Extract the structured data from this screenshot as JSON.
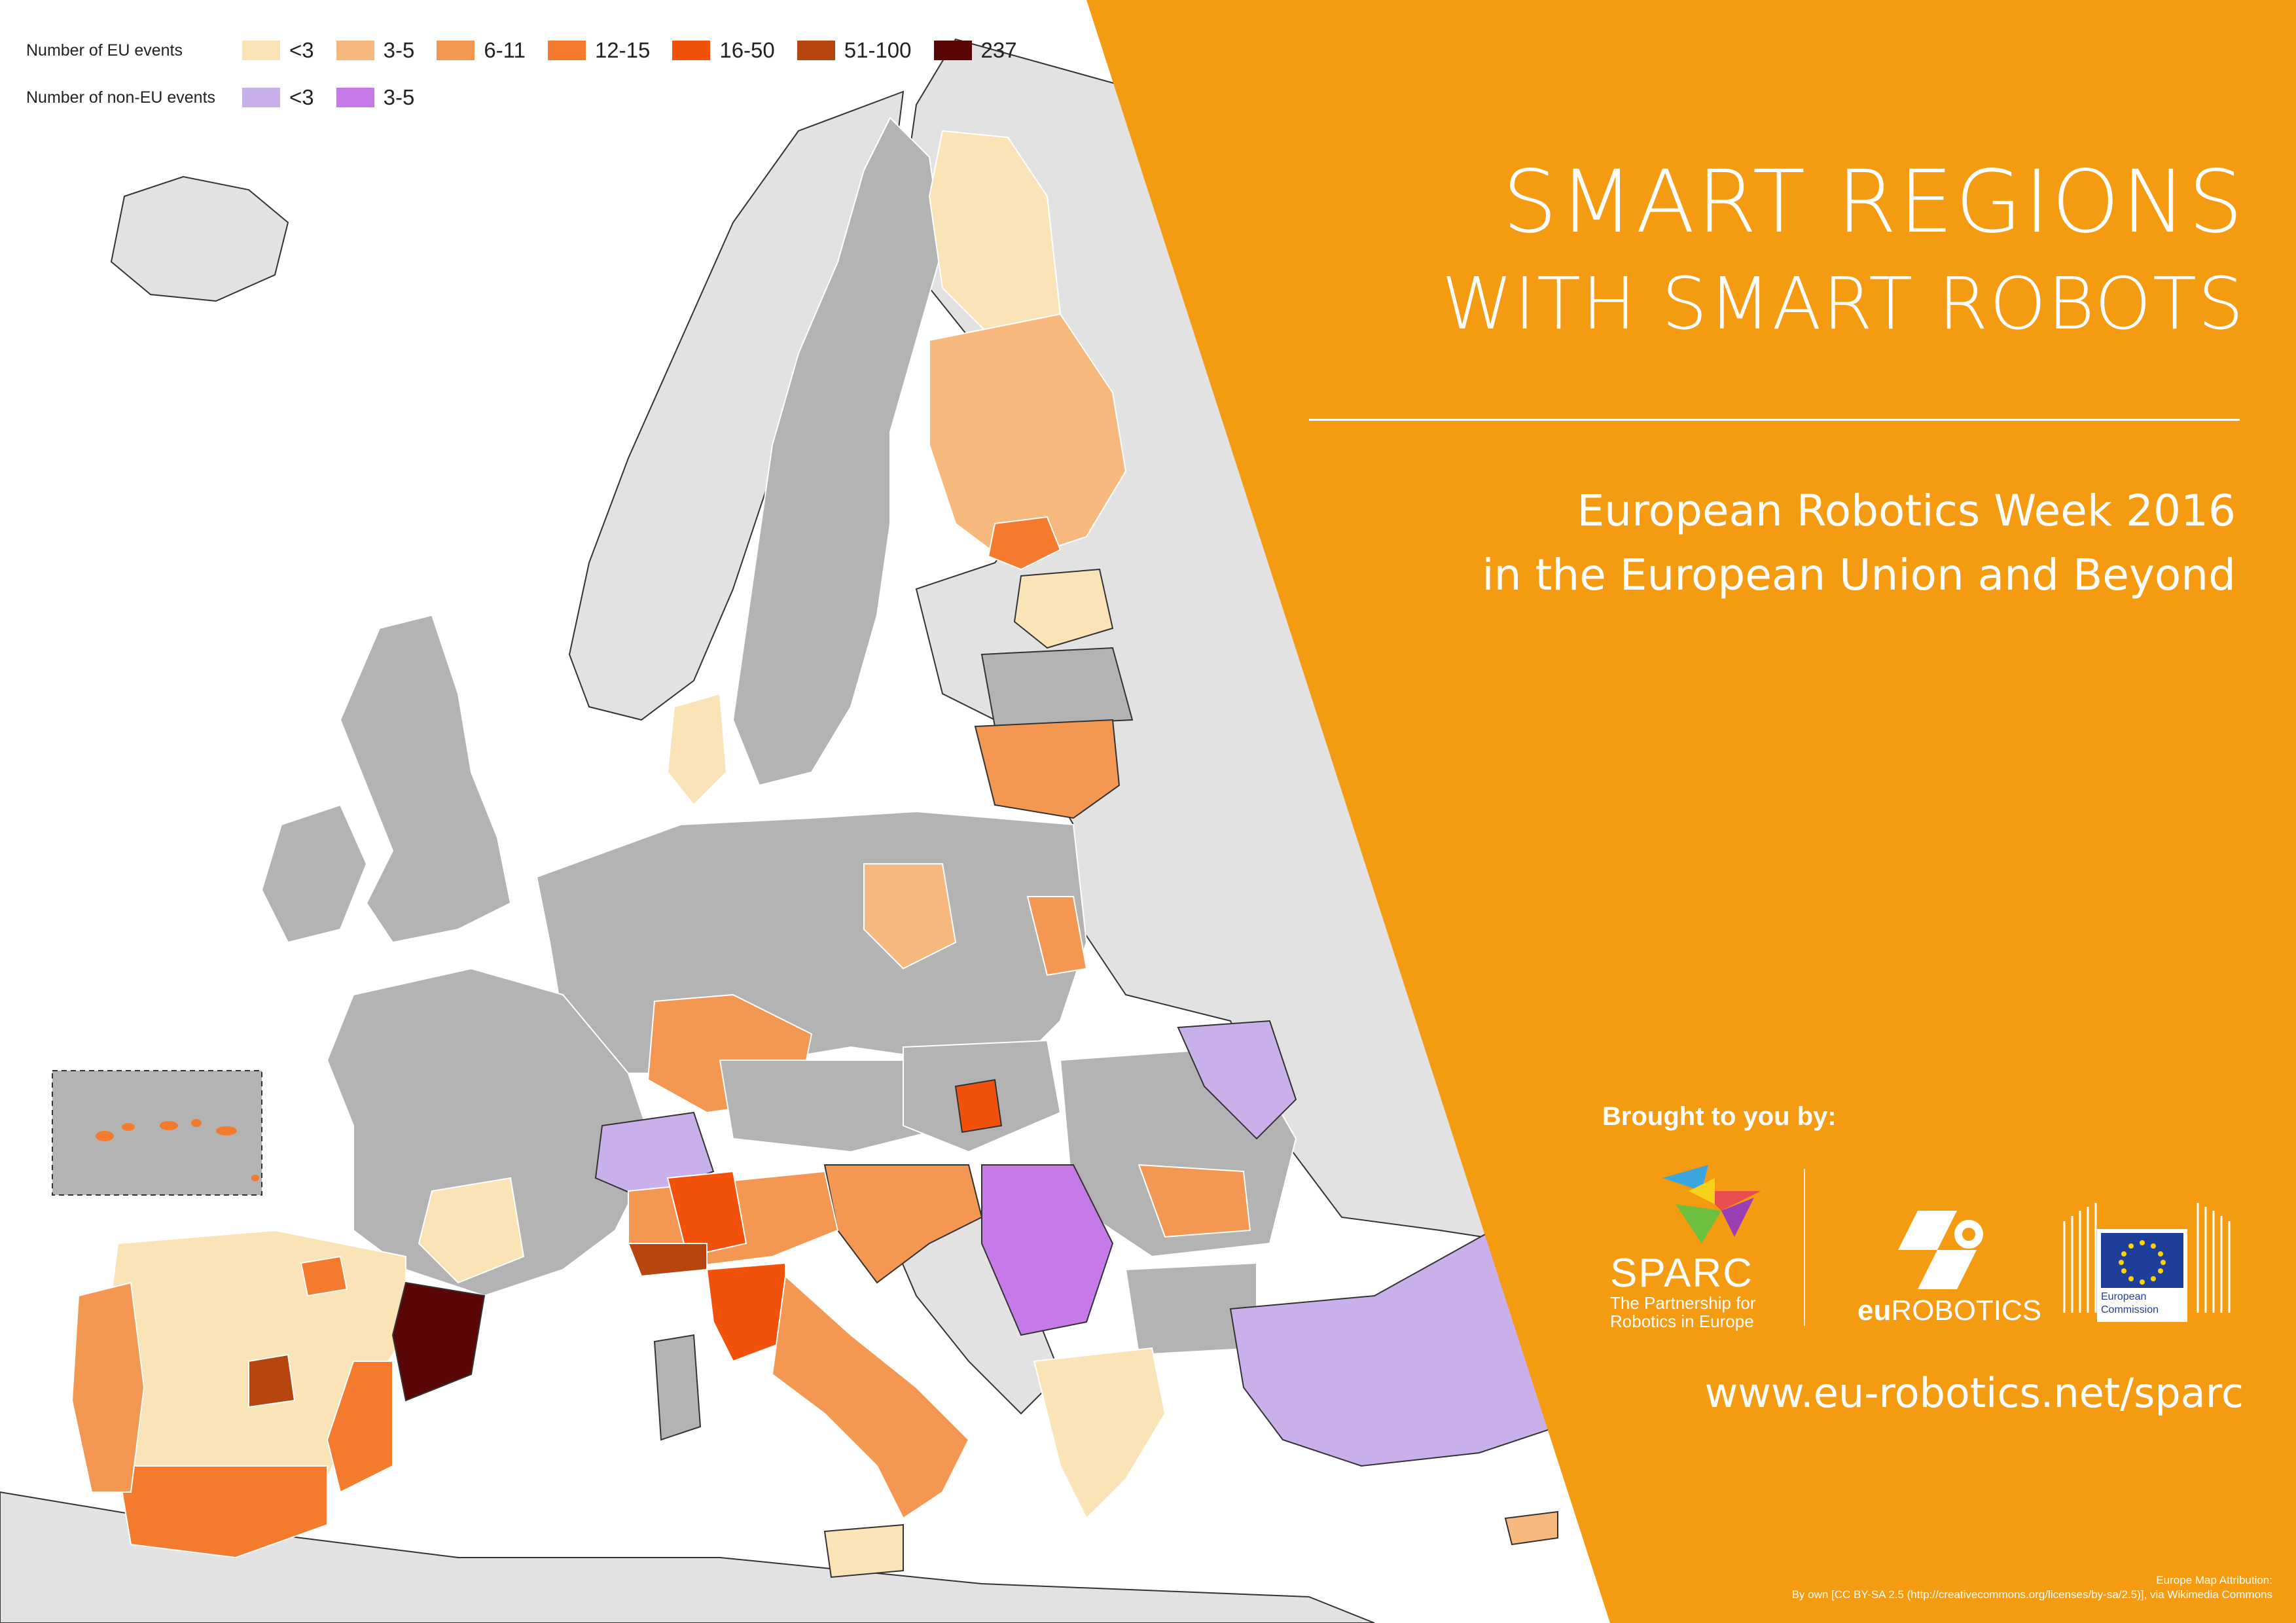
{
  "legend": {
    "eu_title": "Number of EU events",
    "eu_items": [
      {
        "label": "<3",
        "color": "#fae3b6"
      },
      {
        "label": "3-5",
        "color": "#f7b87d"
      },
      {
        "label": "6-11",
        "color": "#f39752"
      },
      {
        "label": "12-15",
        "color": "#f47a2e"
      },
      {
        "label": "16-50",
        "color": "#f2510b"
      },
      {
        "label": "51-100",
        "color": "#b64510"
      },
      {
        "label": "237",
        "color": "#5a0606"
      }
    ],
    "noneu_title": "Number of non-EU events",
    "noneu_items": [
      {
        "label": "<3",
        "color": "#c9b0eb"
      },
      {
        "label": "3-5",
        "color": "#c67ae8"
      }
    ]
  },
  "title": {
    "line1": "SMART REGIONS",
    "line2": "WITH SMART ROBOTS"
  },
  "subtitle": {
    "line1": "European Robotics Week 2016",
    "line2": "in the European Union and Beyond"
  },
  "brought_by": "Brought to you by:",
  "sponsors": {
    "sparc_name": "SPARC",
    "sparc_tagline_1": "The Partnership for",
    "sparc_tagline_2": "Robotics in Europe",
    "eurobotics_prefix": "eu",
    "eurobotics_name": "ROBOTICS",
    "ec_line1": "European",
    "ec_line2": "Commission"
  },
  "website": "www.eu-robotics.net/sparc",
  "attribution": {
    "line1": "Europe Map Attribution:",
    "line2": "By own [CC BY-SA 2.5 (http://creativecommons.org/licenses/by-sa/2.5)], via Wikimedia Commons"
  },
  "colors": {
    "panel": "#f59b12",
    "no_events": "#b3b3b3",
    "non_participating": "#e2e2e2",
    "sea": "#ffffff"
  },
  "regions": [
    {
      "name": "catalonia",
      "category": "237"
    },
    {
      "name": "madrid",
      "category": "51-100"
    },
    {
      "name": "liguria",
      "category": "51-100"
    },
    {
      "name": "lombardy",
      "category": "16-50"
    },
    {
      "name": "tuscany",
      "category": "16-50"
    },
    {
      "name": "budapest",
      "category": "16-50"
    },
    {
      "name": "uusimaa",
      "category": "12-15"
    },
    {
      "name": "andalusia",
      "category": "12-15"
    },
    {
      "name": "valencia",
      "category": "12-15"
    },
    {
      "name": "basque-country",
      "category": "12-15"
    },
    {
      "name": "azores",
      "category": "12-15"
    },
    {
      "name": "lithuania",
      "category": "6-11"
    },
    {
      "name": "bavaria",
      "category": "6-11"
    },
    {
      "name": "romania-center",
      "category": "6-11"
    },
    {
      "name": "serbia",
      "category": "non-eu 3-5"
    },
    {
      "name": "switzerland",
      "category": "non-eu <3"
    },
    {
      "name": "moldova",
      "category": "non-eu <3"
    },
    {
      "name": "turkey",
      "category": "non-eu <3"
    }
  ]
}
